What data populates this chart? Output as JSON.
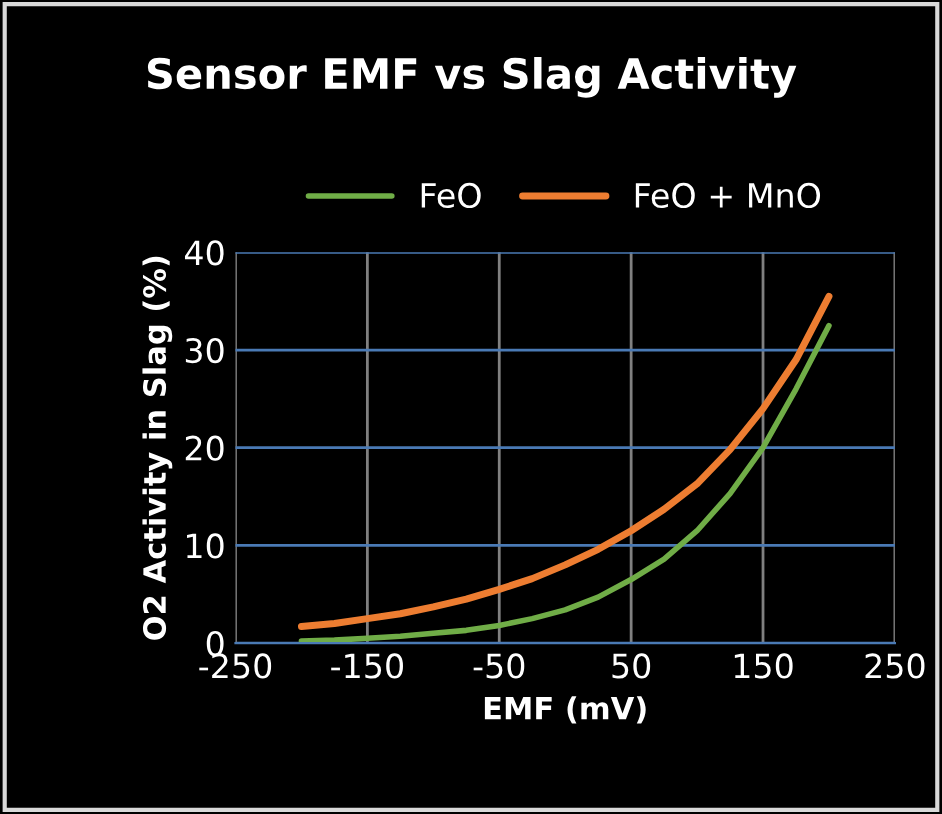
{
  "chart_data": {
    "type": "line",
    "title": "Sensor EMF vs Slag Activity",
    "xlabel": "EMF (mV)",
    "ylabel": "O2 Activity in Slag (%)",
    "x": [
      -200,
      -175,
      -150,
      -125,
      -100,
      -75,
      -50,
      -25,
      0,
      25,
      50,
      75,
      100,
      125,
      150,
      175,
      200
    ],
    "series": [
      {
        "name": "FeO",
        "color": "#70ad47",
        "values": [
          0.2,
          0.3,
          0.5,
          0.7,
          1.0,
          1.3,
          1.8,
          2.5,
          3.4,
          4.7,
          6.5,
          8.6,
          11.5,
          15.3,
          20,
          26,
          32.5
        ]
      },
      {
        "name": "FeO + MnO",
        "color": "#ed7d31",
        "values": [
          1.7,
          2.0,
          2.5,
          3.0,
          3.7,
          4.5,
          5.5,
          6.6,
          8.0,
          9.6,
          11.5,
          13.7,
          16.3,
          19.8,
          24,
          29,
          35.5
        ]
      }
    ],
    "xlim": [
      -250,
      250
    ],
    "xticks": [
      -250,
      -150,
      -50,
      50,
      150,
      250
    ],
    "ylim": [
      0,
      40
    ],
    "yticks": [
      0,
      10,
      20,
      30,
      40
    ],
    "grid": true,
    "legend": "top",
    "marker": "none",
    "line_style": "solid"
  }
}
